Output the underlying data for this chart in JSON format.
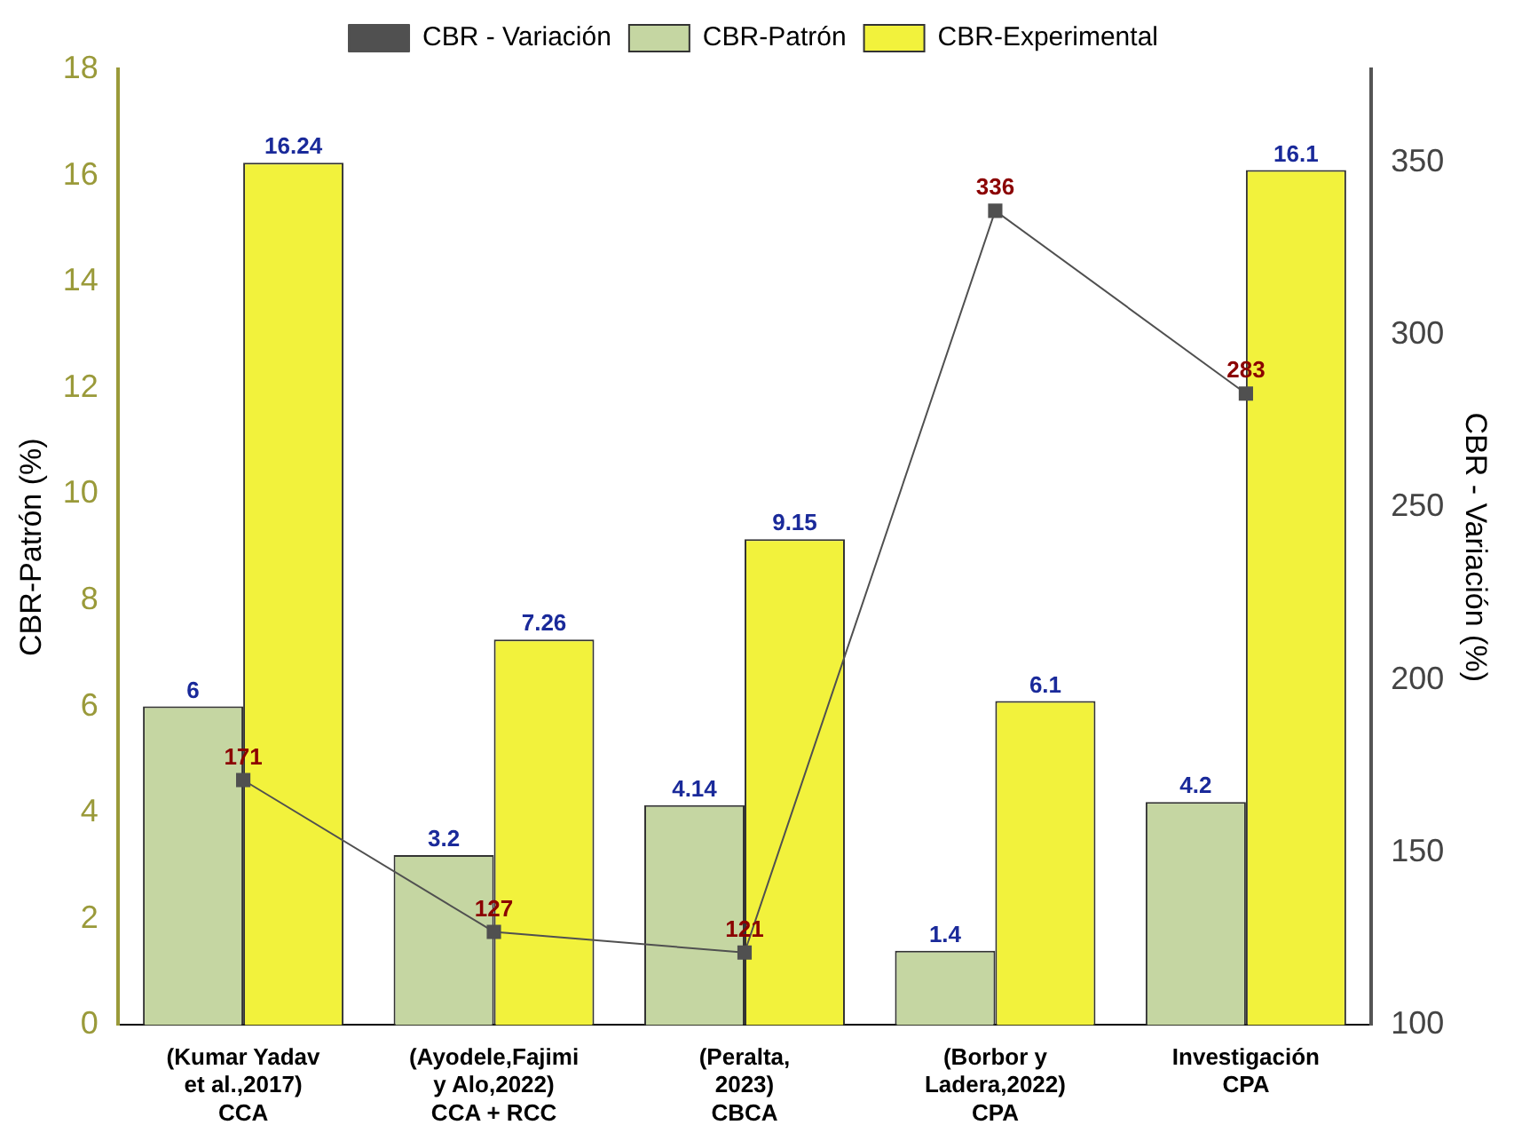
{
  "chart_data": {
    "type": "bar",
    "categories": [
      "(Kumar Yadav\net al.,2017)\nCCA",
      "(Ayodele,Fajimi\ny Alo,2022)\nCCA + RCC",
      "(Peralta,\n2023)\nCBCA",
      "(Borbor y\nLadera,2022)\nCPA",
      "Investigación\nCPA"
    ],
    "series": [
      {
        "name": "CBR-Patrón",
        "color": "#c5d6a2",
        "values": [
          6,
          3.2,
          4.14,
          1.4,
          4.2
        ]
      },
      {
        "name": "CBR-Experimental",
        "color": "#f2f23c",
        "values": [
          16.24,
          7.26,
          9.15,
          6.1,
          16.1
        ]
      },
      {
        "name": "CBR - Variación",
        "type": "line",
        "axis": "y2",
        "color": "#505050",
        "values": [
          171,
          127,
          121,
          336,
          283
        ]
      }
    ],
    "ylabel": "CBR-Patrón (%)",
    "y2label": "CBR - Variación (%)",
    "ylim": [
      0,
      18
    ],
    "yticks": [
      0,
      2,
      4,
      6,
      8,
      10,
      12,
      14,
      16,
      18
    ],
    "y2lim": [
      100,
      377
    ],
    "y2ticks": [
      100,
      150,
      200,
      250,
      300,
      350
    ],
    "marker": "square",
    "data_labels": true,
    "legend": "top",
    "grid": false
  }
}
